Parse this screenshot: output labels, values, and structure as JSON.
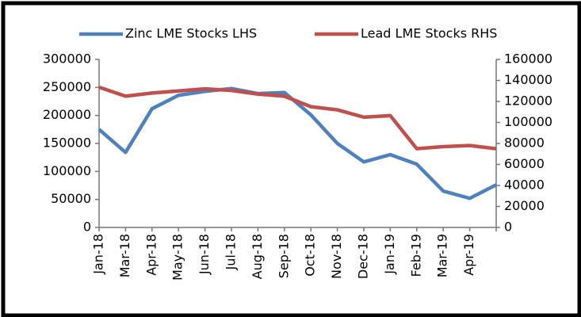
{
  "chart_data": {
    "type": "line",
    "categories": [
      "Jan-18",
      "Mar-18",
      "Apr-18",
      "May-18",
      "Jun-18",
      "Jul-18",
      "Aug-18",
      "Sep-18",
      "Oct-18",
      "Nov-18",
      "Dec-18",
      "Jan-19",
      "Feb-19",
      "Mar-19",
      "Apr-19",
      null
    ],
    "series": [
      {
        "name": "Zinc LME Stocks LHS",
        "color": "#4f81bd",
        "values": [
          175000,
          134000,
          212000,
          236000,
          243000,
          248000,
          239000,
          241000,
          201000,
          150000,
          117000,
          130000,
          113000,
          65000,
          52000,
          76000
        ]
      },
      {
        "name": "Lead LME Stocks RHS",
        "color": "#c0504d",
        "axis": "y2",
        "values": [
          133500,
          125000,
          128000,
          130000,
          132000,
          130500,
          127000,
          125000,
          115000,
          112000,
          105000,
          106500,
          75000,
          77000,
          78000,
          75000
        ]
      }
    ],
    "ylim": [
      0,
      300000
    ],
    "yticks": [
      0,
      50000,
      100000,
      150000,
      200000,
      250000,
      300000
    ],
    "y2lim": [
      0,
      160000
    ],
    "y2ticks": [
      0,
      20000,
      40000,
      60000,
      80000,
      100000,
      120000,
      140000,
      160000
    ],
    "legend": "top"
  }
}
